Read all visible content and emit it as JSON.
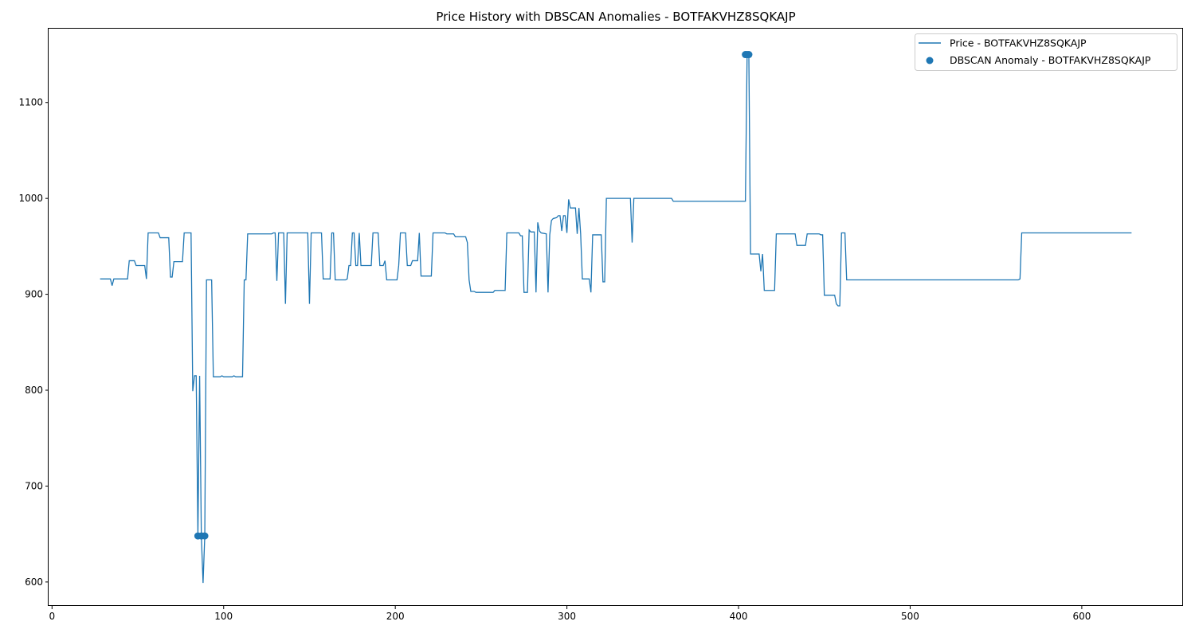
{
  "chart_data": {
    "type": "line",
    "title": "Price History with DBSCAN Anomalies - BOTFAKVHZ8SQKAJP",
    "xlabel": "",
    "ylabel": "",
    "xlim": [
      -2,
      659
    ],
    "ylim": [
      575,
      1177
    ],
    "xticks": [
      0,
      100,
      200,
      300,
      400,
      500,
      600
    ],
    "yticks": [
      600,
      700,
      800,
      900,
      1000,
      1100
    ],
    "grid": false,
    "legend_position": "top-right",
    "color": "#1f77b4",
    "series": [
      {
        "name": "Price - BOTFAKVHZ8SQKAJP",
        "kind": "line",
        "points": [
          [
            28,
            916
          ],
          [
            34,
            916
          ],
          [
            35,
            909
          ],
          [
            36,
            916
          ],
          [
            44,
            916
          ],
          [
            45,
            935
          ],
          [
            48,
            935
          ],
          [
            49,
            930
          ],
          [
            54,
            930
          ],
          [
            55,
            916
          ],
          [
            56,
            964
          ],
          [
            62,
            964
          ],
          [
            63,
            959
          ],
          [
            68,
            959
          ],
          [
            69,
            918
          ],
          [
            70,
            918
          ],
          [
            71,
            934
          ],
          [
            76,
            934
          ],
          [
            77,
            964
          ],
          [
            81,
            964
          ],
          [
            82,
            799
          ],
          [
            83,
            815
          ],
          [
            84,
            815
          ],
          [
            85,
            648
          ],
          [
            86,
            815
          ],
          [
            87,
            648
          ],
          [
            88,
            599
          ],
          [
            89,
            648
          ],
          [
            90,
            915
          ],
          [
            93,
            915
          ],
          [
            94,
            814
          ],
          [
            98,
            814
          ],
          [
            99,
            815
          ],
          [
            100,
            814
          ],
          [
            105,
            814
          ],
          [
            106,
            815
          ],
          [
            107,
            814
          ],
          [
            111,
            814
          ],
          [
            112,
            915
          ],
          [
            113,
            915
          ],
          [
            114,
            963
          ],
          [
            120,
            963
          ],
          [
            128,
            963
          ],
          [
            129,
            964
          ],
          [
            130,
            964
          ],
          [
            131,
            914
          ],
          [
            132,
            964
          ],
          [
            135,
            964
          ],
          [
            136,
            890
          ],
          [
            137,
            964
          ],
          [
            149,
            964
          ],
          [
            150,
            890
          ],
          [
            151,
            964
          ],
          [
            157,
            964
          ],
          [
            158,
            916
          ],
          [
            162,
            916
          ],
          [
            163,
            964
          ],
          [
            164,
            964
          ],
          [
            165,
            915
          ],
          [
            171,
            915
          ],
          [
            172,
            916
          ],
          [
            173,
            930
          ],
          [
            174,
            930
          ],
          [
            175,
            964
          ],
          [
            176,
            964
          ],
          [
            177,
            930
          ],
          [
            178,
            930
          ],
          [
            179,
            964
          ],
          [
            180,
            930
          ],
          [
            186,
            930
          ],
          [
            187,
            964
          ],
          [
            190,
            964
          ],
          [
            191,
            930
          ],
          [
            193,
            930
          ],
          [
            194,
            935
          ],
          [
            195,
            915
          ],
          [
            201,
            915
          ],
          [
            202,
            930
          ],
          [
            203,
            964
          ],
          [
            206,
            964
          ],
          [
            207,
            930
          ],
          [
            209,
            930
          ],
          [
            210,
            935
          ],
          [
            213,
            935
          ],
          [
            214,
            964
          ],
          [
            215,
            919
          ],
          [
            221,
            919
          ],
          [
            222,
            964
          ],
          [
            229,
            964
          ],
          [
            230,
            963
          ],
          [
            234,
            963
          ],
          [
            235,
            960
          ],
          [
            241,
            960
          ],
          [
            242,
            954
          ],
          [
            243,
            915
          ],
          [
            244,
            903
          ],
          [
            246,
            903
          ],
          [
            247,
            902
          ],
          [
            257,
            902
          ],
          [
            258,
            904
          ],
          [
            264,
            904
          ],
          [
            265,
            964
          ],
          [
            272,
            964
          ],
          [
            273,
            961
          ],
          [
            274,
            961
          ],
          [
            275,
            902
          ],
          [
            277,
            902
          ],
          [
            278,
            967
          ],
          [
            279,
            965
          ],
          [
            281,
            965
          ],
          [
            282,
            902
          ],
          [
            283,
            975
          ],
          [
            284,
            966
          ],
          [
            285,
            964
          ],
          [
            288,
            963
          ],
          [
            289,
            902
          ],
          [
            290,
            962
          ],
          [
            291,
            977
          ],
          [
            292,
            979
          ],
          [
            294,
            980
          ],
          [
            295,
            982
          ],
          [
            296,
            982
          ],
          [
            297,
            966
          ],
          [
            298,
            982
          ],
          [
            299,
            982
          ],
          [
            300,
            964
          ],
          [
            301,
            999
          ],
          [
            302,
            990
          ],
          [
            305,
            990
          ],
          [
            306,
            963
          ],
          [
            307,
            990
          ],
          [
            308,
            963
          ],
          [
            309,
            916
          ],
          [
            313,
            916
          ],
          [
            314,
            902
          ],
          [
            315,
            962
          ],
          [
            320,
            962
          ],
          [
            321,
            913
          ],
          [
            322,
            913
          ],
          [
            323,
            1000
          ],
          [
            337,
            1000
          ],
          [
            338,
            954
          ],
          [
            339,
            1000
          ],
          [
            361,
            1000
          ],
          [
            362,
            997
          ],
          [
            404,
            997
          ],
          [
            405,
            1150
          ],
          [
            406,
            1150
          ],
          [
            407,
            942
          ],
          [
            412,
            942
          ],
          [
            413,
            924
          ],
          [
            414,
            942
          ],
          [
            415,
            904
          ],
          [
            421,
            904
          ],
          [
            422,
            963
          ],
          [
            433,
            963
          ],
          [
            434,
            951
          ],
          [
            439,
            951
          ],
          [
            440,
            963
          ],
          [
            447,
            963
          ],
          [
            448,
            962
          ],
          [
            449,
            962
          ],
          [
            450,
            899
          ],
          [
            456,
            899
          ],
          [
            457,
            890
          ],
          [
            458,
            888
          ],
          [
            459,
            888
          ],
          [
            460,
            964
          ],
          [
            462,
            964
          ],
          [
            463,
            915
          ],
          [
            563,
            915
          ],
          [
            564,
            916
          ],
          [
            565,
            964
          ],
          [
            629,
            964
          ]
        ]
      },
      {
        "name": "DBSCAN Anomaly - BOTFAKVHZ8SQKAJP",
        "kind": "scatter",
        "points": [
          [
            85,
            648
          ],
          [
            87,
            648
          ],
          [
            89,
            648
          ],
          [
            404,
            1150
          ],
          [
            405,
            1150
          ],
          [
            406,
            1150
          ]
        ]
      }
    ]
  }
}
